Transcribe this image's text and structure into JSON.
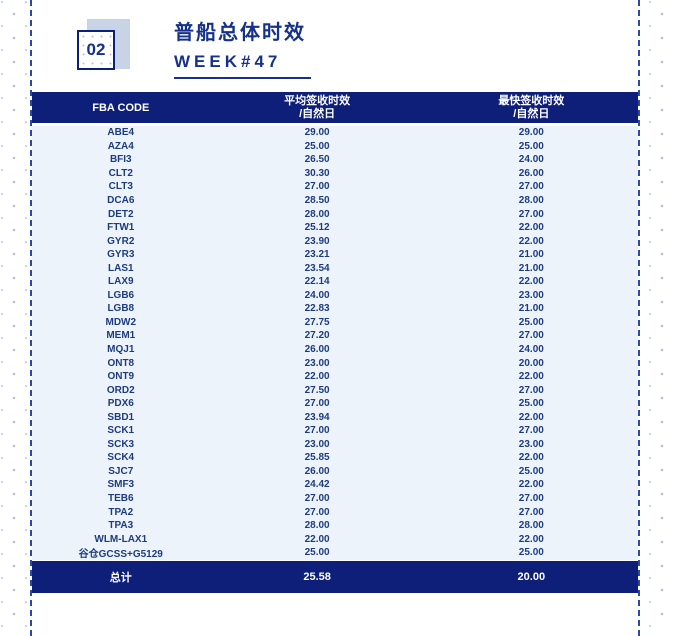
{
  "header": {
    "section_number": "02",
    "title": "普船总体时效",
    "subtitle": "WEEK#47"
  },
  "table": {
    "columns": {
      "code": "FBA CODE",
      "avg_line1": "平均签收时效",
      "avg_line2": "/自然日",
      "fast_line1": "最快签收时效",
      "fast_line2": "/自然日"
    },
    "rows": [
      {
        "code": "ABE4",
        "avg": "29.00",
        "fastest": "29.00"
      },
      {
        "code": "AZA4",
        "avg": "25.00",
        "fastest": "25.00"
      },
      {
        "code": "BFI3",
        "avg": "26.50",
        "fastest": "24.00"
      },
      {
        "code": "CLT2",
        "avg": "30.30",
        "fastest": "26.00"
      },
      {
        "code": "CLT3",
        "avg": "27.00",
        "fastest": "27.00"
      },
      {
        "code": "DCA6",
        "avg": "28.50",
        "fastest": "28.00"
      },
      {
        "code": "DET2",
        "avg": "28.00",
        "fastest": "27.00"
      },
      {
        "code": "FTW1",
        "avg": "25.12",
        "fastest": "22.00"
      },
      {
        "code": "GYR2",
        "avg": "23.90",
        "fastest": "22.00"
      },
      {
        "code": "GYR3",
        "avg": "23.21",
        "fastest": "21.00"
      },
      {
        "code": "LAS1",
        "avg": "23.54",
        "fastest": "21.00"
      },
      {
        "code": "LAX9",
        "avg": "22.14",
        "fastest": "22.00"
      },
      {
        "code": "LGB6",
        "avg": "24.00",
        "fastest": "23.00"
      },
      {
        "code": "LGB8",
        "avg": "22.83",
        "fastest": "21.00"
      },
      {
        "code": "MDW2",
        "avg": "27.75",
        "fastest": "25.00"
      },
      {
        "code": "MEM1",
        "avg": "27.20",
        "fastest": "27.00"
      },
      {
        "code": "MQJ1",
        "avg": "26.00",
        "fastest": "24.00"
      },
      {
        "code": "ONT8",
        "avg": "23.00",
        "fastest": "20.00"
      },
      {
        "code": "ONT9",
        "avg": "22.00",
        "fastest": "22.00"
      },
      {
        "code": "ORD2",
        "avg": "27.50",
        "fastest": "27.00"
      },
      {
        "code": "PDX6",
        "avg": "27.00",
        "fastest": "25.00"
      },
      {
        "code": "SBD1",
        "avg": "23.94",
        "fastest": "22.00"
      },
      {
        "code": "SCK1",
        "avg": "27.00",
        "fastest": "27.00"
      },
      {
        "code": "SCK3",
        "avg": "23.00",
        "fastest": "23.00"
      },
      {
        "code": "SCK4",
        "avg": "25.85",
        "fastest": "22.00"
      },
      {
        "code": "SJC7",
        "avg": "26.00",
        "fastest": "25.00"
      },
      {
        "code": "SMF3",
        "avg": "24.42",
        "fastest": "22.00"
      },
      {
        "code": "TEB6",
        "avg": "27.00",
        "fastest": "27.00"
      },
      {
        "code": "TPA2",
        "avg": "27.00",
        "fastest": "27.00"
      },
      {
        "code": "TPA3",
        "avg": "28.00",
        "fastest": "28.00"
      },
      {
        "code": "WLM-LAX1",
        "avg": "22.00",
        "fastest": "22.00"
      },
      {
        "code": "谷仓GCSS+G5129",
        "avg": "25.00",
        "fastest": "25.00"
      }
    ],
    "total": {
      "label": "总计",
      "avg": "25.58",
      "fastest": "20.00"
    }
  },
  "colors": {
    "navy_bar": "#0e1f7a",
    "title_navy": "#15318c",
    "row_background": "#edf3fa",
    "row_text": "#1d3c80",
    "accent_square": "#c9d3e6",
    "dashed_border": "#2b49a8",
    "dot_pattern": "#aebfd6"
  }
}
